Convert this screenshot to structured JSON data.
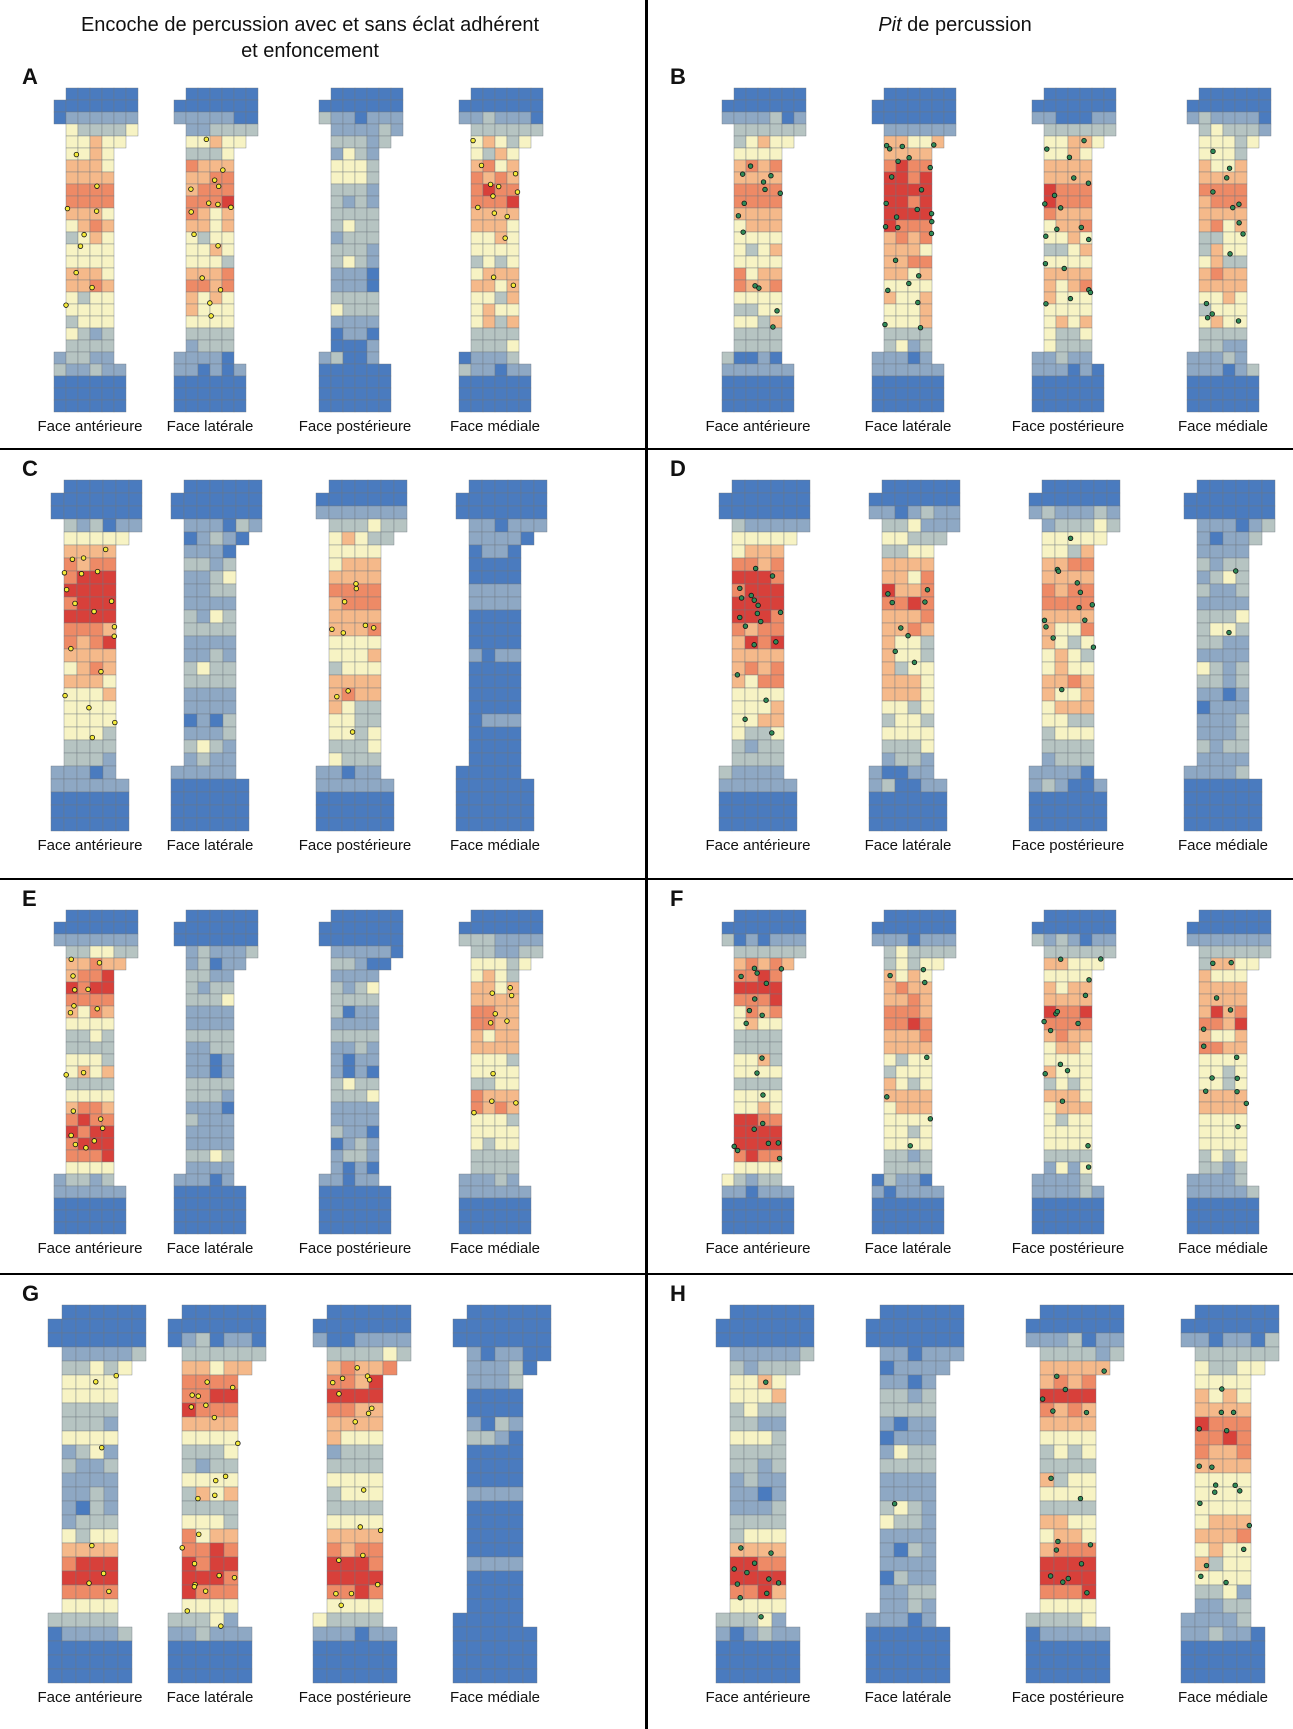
{
  "headers": {
    "left": [
      "Encoche de percussion avec et sans éclat adhérent",
      "et enfoncement"
    ],
    "right_italic": "Pit",
    "right_rest": " de percussion"
  },
  "colors": {
    "none": "#4a7bbf",
    "very_low": "#8ea8c4",
    "low": "#b6c4c2",
    "medium": "#f7f3c4",
    "high": "#f5b98a",
    "very_high": "#ee8a66",
    "max": "#d8403a",
    "grid": "#6e7780",
    "dot_yellow": "#f4ea3a",
    "dot_green": "#2f8a57",
    "dot_stroke": "#111111"
  },
  "panels": [
    {
      "label": "A",
      "dot": "yellow",
      "faces": [
        "Face antérieure",
        "Face latérale",
        "Face postérieure",
        "Face médiale"
      ],
      "profiles": [
        "mid",
        "mid",
        "posterior",
        "mid"
      ]
    },
    {
      "label": "B",
      "dot": "green",
      "faces": [
        "Face antérieure",
        "Face latérale",
        "Face postérieure",
        "Face médiale"
      ],
      "profiles": [
        "mid",
        "hot",
        "mid",
        "mid"
      ]
    },
    {
      "label": "C",
      "dot": "yellow",
      "faces": [
        "Face antérieure",
        "Face latérale",
        "Face postérieure",
        "Face médiale"
      ],
      "profiles": [
        "hot",
        "cool",
        "mid",
        "cold"
      ]
    },
    {
      "label": "D",
      "dot": "green",
      "faces": [
        "Face antérieure",
        "Face latérale",
        "Face postérieure",
        "Face médiale"
      ],
      "profiles": [
        "hot",
        "mid",
        "mid",
        "cool"
      ]
    },
    {
      "label": "E",
      "dot": "yellow",
      "faces": [
        "Face antérieure",
        "Face latérale",
        "Face postérieure",
        "Face médiale"
      ],
      "profiles": [
        "twohot",
        "cool",
        "cool",
        "mid"
      ]
    },
    {
      "label": "F",
      "dot": "green",
      "faces": [
        "Face antérieure",
        "Face latérale",
        "Face postérieure",
        "Face médiale"
      ],
      "profiles": [
        "twohot",
        "mid",
        "mid",
        "mid"
      ]
    },
    {
      "label": "G",
      "dot": "yellow",
      "faces": [
        "Face antérieure",
        "Face latérale",
        "Face postérieure",
        "Face médiale"
      ],
      "profiles": [
        "lowhot",
        "twohot",
        "twohot",
        "cold"
      ]
    },
    {
      "label": "H",
      "dot": "green",
      "faces": [
        "Face antérieure",
        "Face latérale",
        "Face postérieure",
        "Face médiale"
      ],
      "profiles": [
        "lowhot",
        "cool",
        "twohot",
        "mid"
      ]
    }
  ]
}
